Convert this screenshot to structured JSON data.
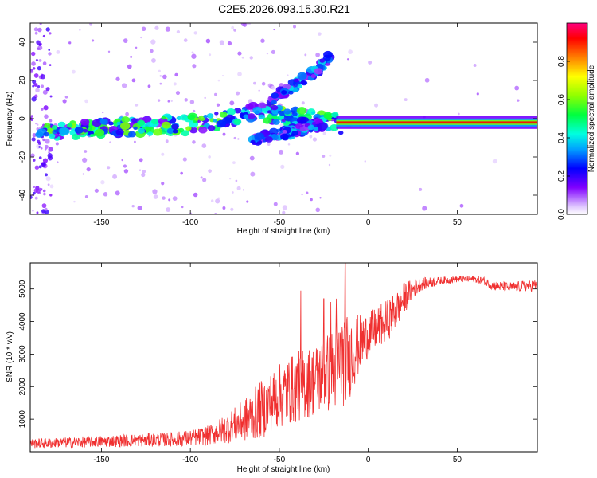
{
  "title": "C2E5.2026.093.15.30.R21",
  "colors": {
    "line": "#f03030",
    "background_trace": "#c080ff",
    "ridge_core": "#e00000"
  },
  "chart_data": [
    {
      "type": "heatmap",
      "title": "C2E5.2026.093.15.30.R21",
      "xlabel": "Height of straight line (km)",
      "ylabel": "Frequency (Hz)",
      "xlim": [
        -190,
        95
      ],
      "ylim": [
        -50,
        50
      ],
      "x_ticks": [
        "-150",
        "-100",
        "-50",
        "0",
        "50"
      ],
      "y_ticks": [
        "40",
        "20",
        "0",
        "-20",
        "-40"
      ],
      "colorbar": {
        "label": "Normalized spectral amplitude",
        "range": [
          0,
          1
        ],
        "ticks": [
          "0.0",
          "0.2",
          "0.4",
          "0.6",
          "0.8"
        ],
        "colormap": "rainbow"
      },
      "features": [
        {
          "name": "main echo ridge",
          "x": [
            -185,
            -150,
            -100,
            -80,
            -60,
            -40,
            -20,
            -15,
            0,
            20,
            50,
            80,
            95
          ],
          "frequency": [
            -8,
            -5,
            -3,
            0,
            3,
            0,
            -2,
            -3,
            -2,
            -2,
            -2,
            -2,
            -3
          ]
        },
        {
          "name": "upper branch",
          "x": [
            -55,
            -40,
            -28,
            -20
          ],
          "frequency": [
            10,
            18,
            26,
            34
          ]
        },
        {
          "name": "lower branch",
          "x": [
            -65,
            -55,
            -40,
            -25
          ],
          "frequency": [
            -12,
            -9,
            -6,
            -3
          ]
        }
      ]
    },
    {
      "type": "line",
      "xlabel": "Height of straight line (km)",
      "ylabel": "SNR (10 * v/v)",
      "xlim": [
        -190,
        95
      ],
      "ylim": [
        0,
        5800
      ],
      "x_ticks": [
        "-150",
        "-100",
        "-50",
        "0",
        "50"
      ],
      "y_ticks": [
        "1000",
        "2000",
        "3000",
        "4000",
        "5000"
      ],
      "series": [
        {
          "x": [
            -190,
            -170,
            -150,
            -130,
            -110,
            -100,
            -90,
            -80,
            -70,
            -60,
            -50,
            -40,
            -30,
            -20,
            -15,
            -10,
            -5,
            0,
            5,
            10,
            15,
            20,
            25,
            30,
            40,
            50,
            60,
            65,
            70,
            80,
            90,
            95
          ],
          "y": [
            250,
            280,
            320,
            350,
            380,
            420,
            500,
            700,
            950,
            1300,
            1700,
            2000,
            2200,
            2500,
            2800,
            3000,
            3300,
            3600,
            3800,
            4000,
            4300,
            4700,
            5000,
            5150,
            5250,
            5300,
            5300,
            5250,
            5100,
            5050,
            5100,
            5100
          ],
          "noise": [
            150,
            160,
            180,
            200,
            220,
            250,
            300,
            450,
            650,
            900,
            1000,
            1100,
            1100,
            1300,
            1500,
            1300,
            900,
            700,
            650,
            650,
            600,
            500,
            300,
            200,
            120,
            100,
            100,
            120,
            150,
            150,
            180,
            200
          ],
          "spikes": [
            {
              "x": -13,
              "y": 5800
            },
            {
              "x": -38,
              "y": 4950
            },
            {
              "x": -25,
              "y": 4700
            },
            {
              "x": -18,
              "y": 4700
            },
            {
              "x": -21,
              "y": 4600
            }
          ]
        }
      ]
    }
  ]
}
